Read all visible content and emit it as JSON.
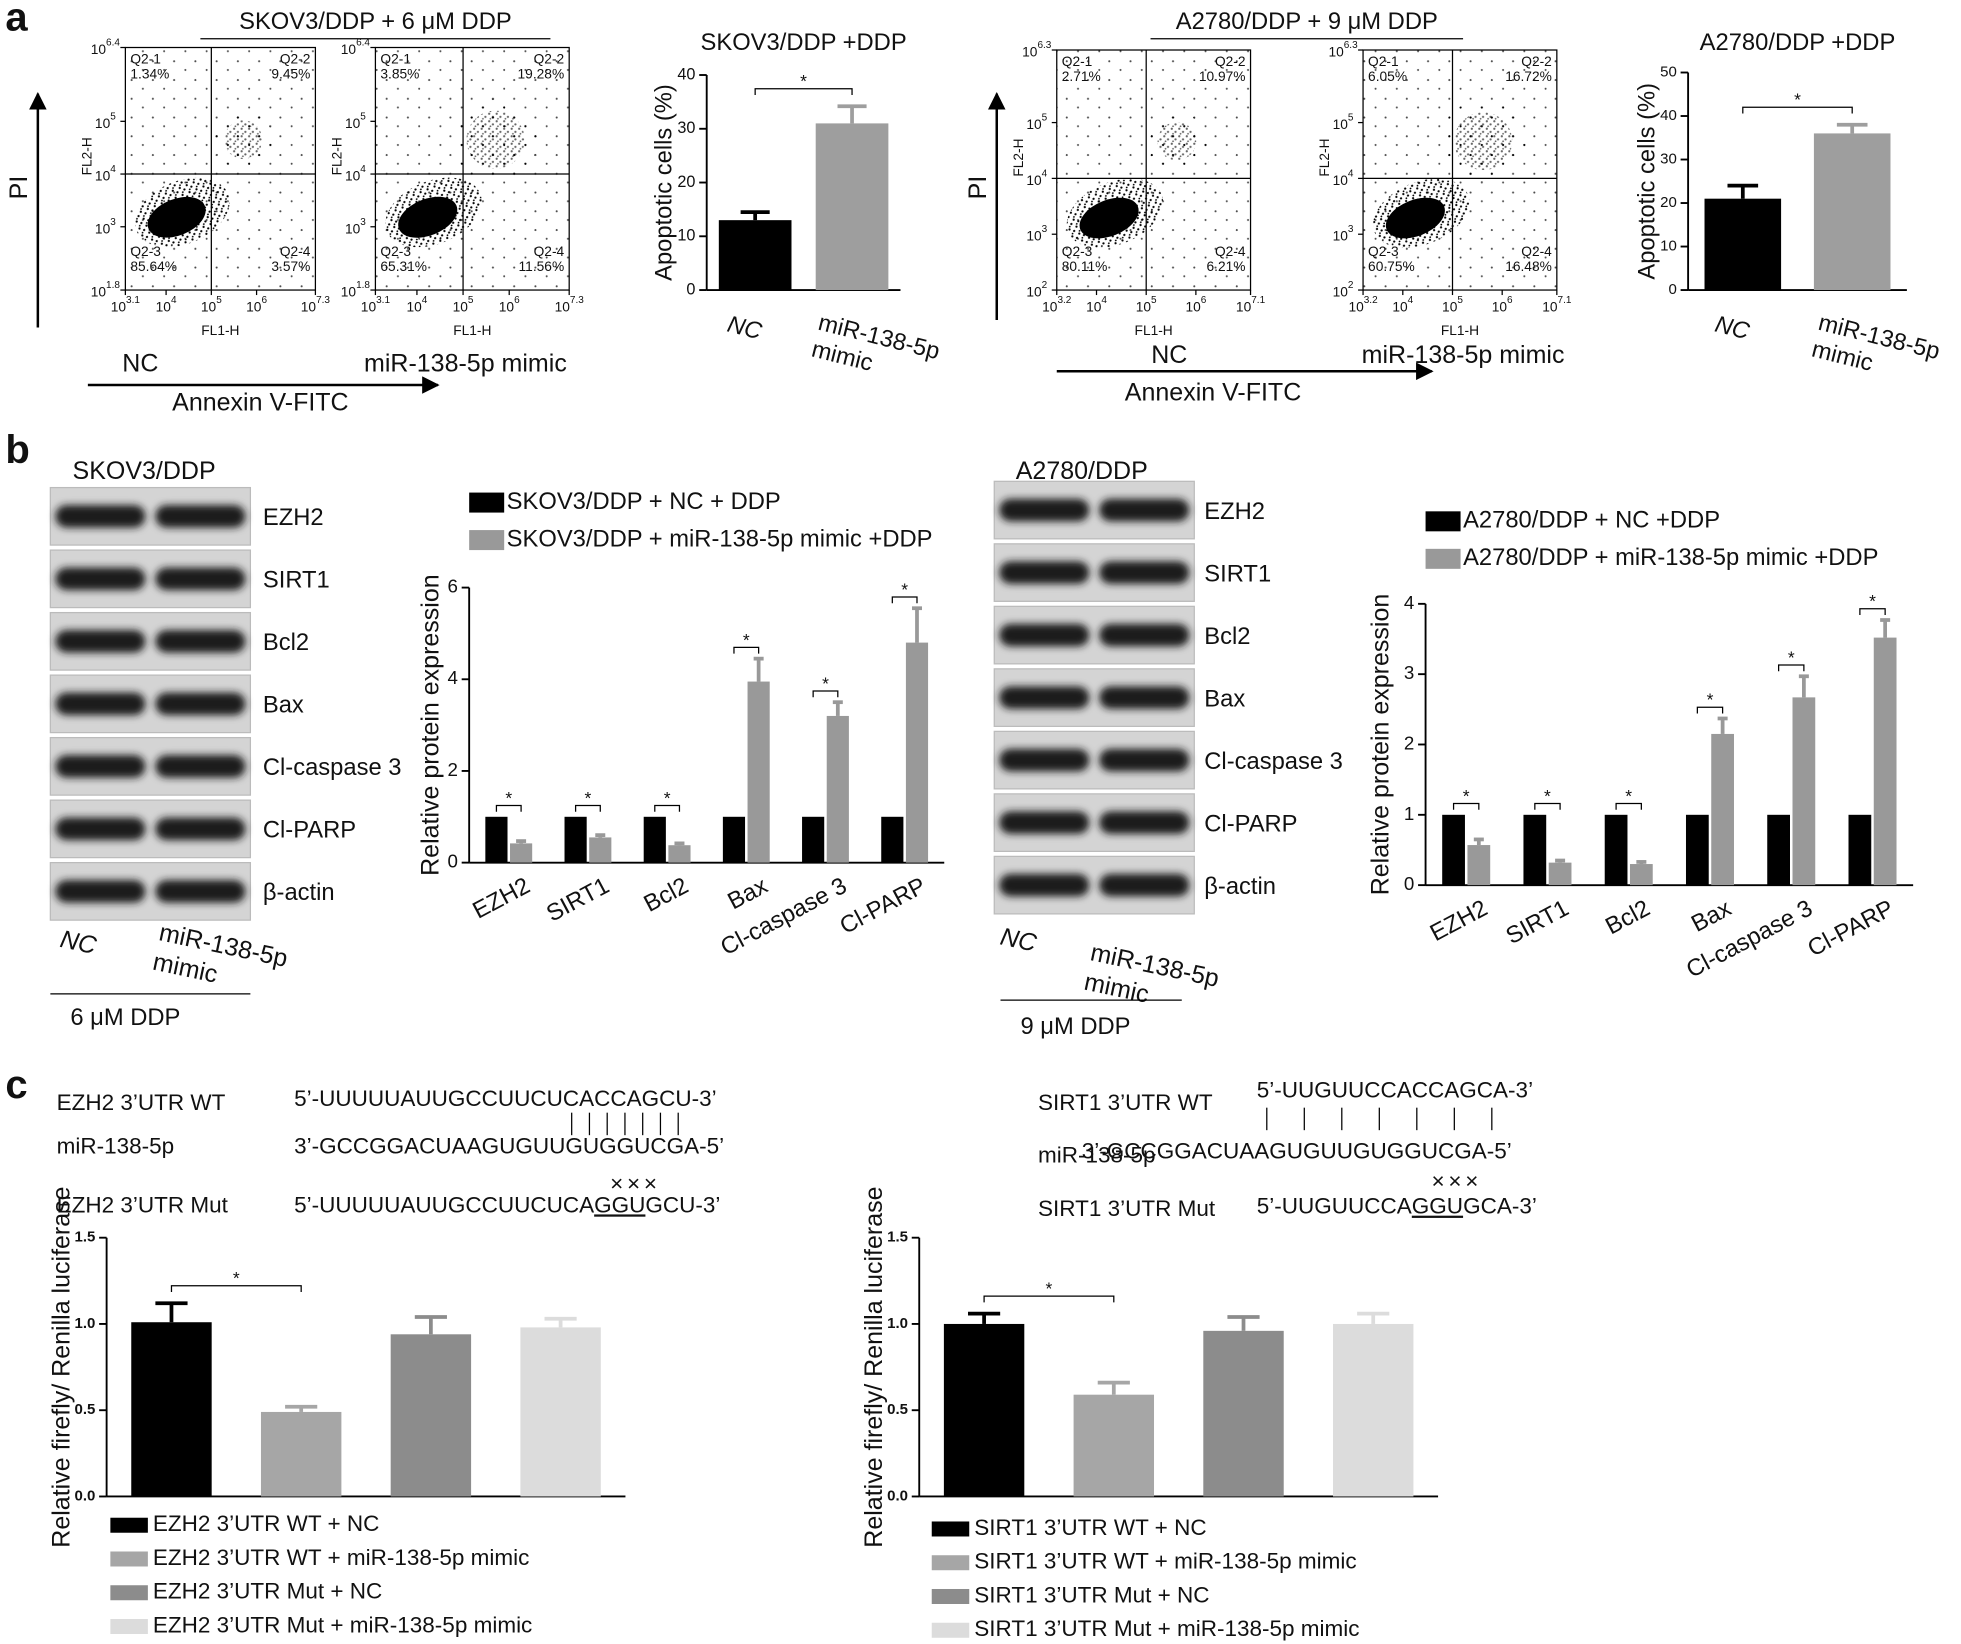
{
  "panel_labels": [
    "a",
    "b",
    "c"
  ],
  "flow_groups": [
    {
      "header": "SKOV3/DDP + 6 μM DDP",
      "y_axis": "PI",
      "x_axis": "Annexin V-FITC",
      "plots": [
        {
          "condition": "NC",
          "x_label": "FL1-H",
          "y_label": "FL2-H",
          "xticks": [
            {
              "base": "10",
              "exp": "3.1"
            },
            {
              "base": "10",
              "exp": "4"
            },
            {
              "base": "10",
              "exp": "5"
            },
            {
              "base": "10",
              "exp": "6"
            },
            {
              "base": "10",
              "exp": "7.3"
            }
          ],
          "yticks": [
            {
              "base": "10",
              "exp": "1.8"
            },
            {
              "base": "10",
              "exp": "3"
            },
            {
              "base": "10",
              "exp": "4"
            },
            {
              "base": "10",
              "exp": "5"
            },
            {
              "base": "10",
              "exp": "6.4"
            }
          ],
          "quadrants": [
            {
              "name": "Q2-1",
              "pct": "1.34%"
            },
            {
              "name": "Q2-2",
              "pct": "9.45%"
            },
            {
              "name": "Q2-3",
              "pct": "85.64%"
            },
            {
              "name": "Q2-4",
              "pct": "3.57%"
            }
          ]
        },
        {
          "condition": "miR-138-5p mimic",
          "x_label": "FL1-H",
          "y_label": "FL2-H",
          "xticks": [
            {
              "base": "10",
              "exp": "3.1"
            },
            {
              "base": "10",
              "exp": "4"
            },
            {
              "base": "10",
              "exp": "5"
            },
            {
              "base": "10",
              "exp": "6"
            },
            {
              "base": "10",
              "exp": "7.3"
            }
          ],
          "yticks": [
            {
              "base": "10",
              "exp": "1.8"
            },
            {
              "base": "10",
              "exp": "3"
            },
            {
              "base": "10",
              "exp": "4"
            },
            {
              "base": "10",
              "exp": "5"
            },
            {
              "base": "10",
              "exp": "6.4"
            }
          ],
          "quadrants": [
            {
              "name": "Q2-1",
              "pct": "3.85%"
            },
            {
              "name": "Q2-2",
              "pct": "19.28%"
            },
            {
              "name": "Q2-3",
              "pct": "65.31%"
            },
            {
              "name": "Q2-4",
              "pct": "11.56%"
            }
          ]
        }
      ]
    },
    {
      "header": "A2780/DDP + 9 μM DDP",
      "y_axis": "PI",
      "x_axis": "Annexin V-FITC",
      "plots": [
        {
          "condition": "NC",
          "x_label": "FL1-H",
          "y_label": "FL2-H",
          "xticks": [
            {
              "base": "10",
              "exp": "3.2"
            },
            {
              "base": "10",
              "exp": "4"
            },
            {
              "base": "10",
              "exp": "5"
            },
            {
              "base": "10",
              "exp": "6"
            },
            {
              "base": "10",
              "exp": "7.1"
            }
          ],
          "yticks": [
            {
              "base": "10",
              "exp": "2"
            },
            {
              "base": "10",
              "exp": "3"
            },
            {
              "base": "10",
              "exp": "4"
            },
            {
              "base": "10",
              "exp": "5"
            },
            {
              "base": "10",
              "exp": "6.3"
            }
          ],
          "quadrants": [
            {
              "name": "Q2-1",
              "pct": "2.71%"
            },
            {
              "name": "Q2-2",
              "pct": "10.97%"
            },
            {
              "name": "Q2-3",
              "pct": "80.11%"
            },
            {
              "name": "Q2-4",
              "pct": "6.21%"
            }
          ]
        },
        {
          "condition": "miR-138-5p mimic",
          "x_label": "FL1-H",
          "y_label": "FL2-H",
          "xticks": [
            {
              "base": "10",
              "exp": "3.2"
            },
            {
              "base": "10",
              "exp": "4"
            },
            {
              "base": "10",
              "exp": "5"
            },
            {
              "base": "10",
              "exp": "6"
            },
            {
              "base": "10",
              "exp": "7.1"
            }
          ],
          "yticks": [
            {
              "base": "10",
              "exp": "2"
            },
            {
              "base": "10",
              "exp": "3"
            },
            {
              "base": "10",
              "exp": "4"
            },
            {
              "base": "10",
              "exp": "5"
            },
            {
              "base": "10",
              "exp": "6.3"
            }
          ],
          "quadrants": [
            {
              "name": "Q2-1",
              "pct": "6.05%"
            },
            {
              "name": "Q2-2",
              "pct": "16.72%"
            },
            {
              "name": "Q2-3",
              "pct": "60.75%"
            },
            {
              "name": "Q2-4",
              "pct": "16.48%"
            }
          ]
        }
      ]
    }
  ],
  "blots": [
    {
      "cell_line": "SKOV3/DDP",
      "proteins": [
        "EZH2",
        "SIRT1",
        "Bcl2",
        "Bax",
        "Cl-caspase 3",
        "Cl-PARP",
        "β-actin"
      ],
      "lanes": [
        "NC",
        "miR-138-5p mimic"
      ],
      "treatment": "6 μM DDP"
    },
    {
      "cell_line": "A2780/DDP",
      "proteins": [
        "EZH2",
        "SIRT1",
        "Bcl2",
        "Bax",
        "Cl-caspase 3",
        "Cl-PARP",
        "β-actin"
      ],
      "lanes": [
        "NC",
        "miR-138-5p mimic"
      ],
      "treatment": "9 μM DDP"
    }
  ],
  "sequences": [
    {
      "wt_label": "EZH2 3’UTR WT",
      "wt_seq": "5’-UUUUUAUUGCCUUCUCACCAGCU-3’",
      "mir_label": "miR-138-5p",
      "mir_seq": "3’-GCCGGACUAAGUGUUGUGGUCGA-5’",
      "mut_marks": "×××",
      "mut_label": "EZH2 3’UTR Mut",
      "mut_seq": [
        "5’-UUUUUAUUGCCUUCUCA",
        "GGU",
        "GCU-3’"
      ]
    },
    {
      "wt_label": "SIRT1 3’UTR WT",
      "wt_seq": "5’-UUGUUCCACCAGCA-3’",
      "mir_label": "miR-138-5p",
      "mir_seq": "3’-GCCGGACUAAGUGUUGUGGUCGA-5’",
      "mut_marks": "×××",
      "mut_label": "SIRT1 3’UTR Mut",
      "mut_seq": [
        "5’-UUGUUCCA",
        "GGU",
        "GCA-3’"
      ]
    }
  ],
  "chart_data": [
    {
      "type": "bar",
      "title": "SKOV3/DDP +DDP",
      "ylabel": "Apoptotic cells (%)",
      "categories": [
        "NC",
        "miR-138-5p mimic"
      ],
      "values": [
        13,
        31
      ],
      "errors": [
        1.5,
        3.2
      ],
      "colors": [
        "#000000",
        "#9e9e9e"
      ],
      "ylim": [
        0,
        40
      ],
      "yticks": [
        0,
        10,
        20,
        30,
        40
      ],
      "significance": [
        "*"
      ]
    },
    {
      "type": "bar",
      "title": "A2780/DDP +DDP",
      "ylabel": "Apoptotic cells (%)",
      "categories": [
        "NC",
        "miR-138-5p mimic"
      ],
      "values": [
        21,
        36
      ],
      "errors": [
        3,
        2
      ],
      "colors": [
        "#000000",
        "#9e9e9e"
      ],
      "ylim": [
        0,
        50
      ],
      "yticks": [
        0,
        10,
        20,
        30,
        40,
        50
      ],
      "significance": [
        "*"
      ]
    },
    {
      "type": "grouped_bar",
      "ylabel": "Relative protein expression",
      "categories": [
        "EZH2",
        "SIRT1",
        "Bcl2",
        "Bax",
        "Cl-caspase 3",
        "Cl-PARP"
      ],
      "series": [
        {
          "name": "SKOV3/DDP + NC + DDP",
          "color": "#000000",
          "values": [
            1,
            1,
            1,
            1,
            1,
            1
          ]
        },
        {
          "name": "SKOV3/DDP + miR-138-5p mimic +DDP",
          "color": "#999999",
          "values": [
            0.42,
            0.55,
            0.38,
            3.95,
            3.2,
            4.8
          ],
          "errors": [
            0.05,
            0.05,
            0.04,
            0.5,
            0.3,
            0.75
          ]
        }
      ],
      "ylim": [
        0,
        6
      ],
      "yticks": [
        0,
        2,
        4,
        6
      ],
      "significance": [
        "*",
        "*",
        "*",
        "*",
        "*",
        "*"
      ]
    },
    {
      "type": "grouped_bar",
      "ylabel": "Relative protein expression",
      "categories": [
        "EZH2",
        "SIRT1",
        "Bcl2",
        "Bax",
        "Cl-caspase 3",
        "Cl-PARP"
      ],
      "series": [
        {
          "name": "A2780/DDP + NC +DDP",
          "color": "#000000",
          "values": [
            1,
            1,
            1,
            1,
            1,
            1
          ]
        },
        {
          "name": "A2780/DDP + miR-138-5p mimic +DDP",
          "color": "#999999",
          "values": [
            0.57,
            0.32,
            0.3,
            2.15,
            2.67,
            3.52
          ],
          "errors": [
            0.08,
            0.03,
            0.03,
            0.22,
            0.3,
            0.25
          ]
        }
      ],
      "ylim": [
        0,
        4
      ],
      "yticks": [
        0,
        1,
        2,
        3,
        4
      ],
      "significance": [
        "*",
        "*",
        "*",
        "*",
        "*",
        "*"
      ]
    },
    {
      "type": "bar",
      "ylabel": "Relative firefly/ Renilla luciferase",
      "categories": [
        "EZH2 3’UTR WT + NC",
        "EZH2 3’UTR WT + miR-138-5p mimic",
        "EZH2 3’UTR Mut + NC",
        "EZH2 3’UTR Mut + miR-138-5p mimic"
      ],
      "values": [
        1.01,
        0.49,
        0.94,
        0.98
      ],
      "errors": [
        0.11,
        0.03,
        0.1,
        0.05
      ],
      "colors": [
        "#000000",
        "#a6a6a6",
        "#8c8c8c",
        "#dcdcdc"
      ],
      "ylim": [
        0,
        1.5
      ],
      "yticks": [
        {
          "value": 0,
          "label": "0.0"
        },
        0.5,
        {
          "value": 1,
          "label": "1.0"
        },
        1.5
      ],
      "significance": [
        "*"
      ]
    },
    {
      "type": "bar",
      "ylabel": "Relative firefly/ Renilla luciferase",
      "categories": [
        "SIRT1 3’UTR WT + NC",
        "SIRT1 3’UTR WT + miR-138-5p mimic",
        "SIRT1 3’UTR Mut + NC",
        "SIRT1 3’UTR Mut + miR-138-5p mimic"
      ],
      "values": [
        1.0,
        0.59,
        0.96,
        1.0
      ],
      "errors": [
        0.06,
        0.07,
        0.08,
        0.06
      ],
      "colors": [
        "#000000",
        "#a6a6a6",
        "#8c8c8c",
        "#dcdcdc"
      ],
      "ylim": [
        0,
        1.5
      ],
      "yticks": [
        {
          "value": 0,
          "label": "0.0"
        },
        0.5,
        {
          "value": 1,
          "label": "1.0"
        },
        1.5
      ],
      "significance": [
        "*"
      ]
    }
  ]
}
